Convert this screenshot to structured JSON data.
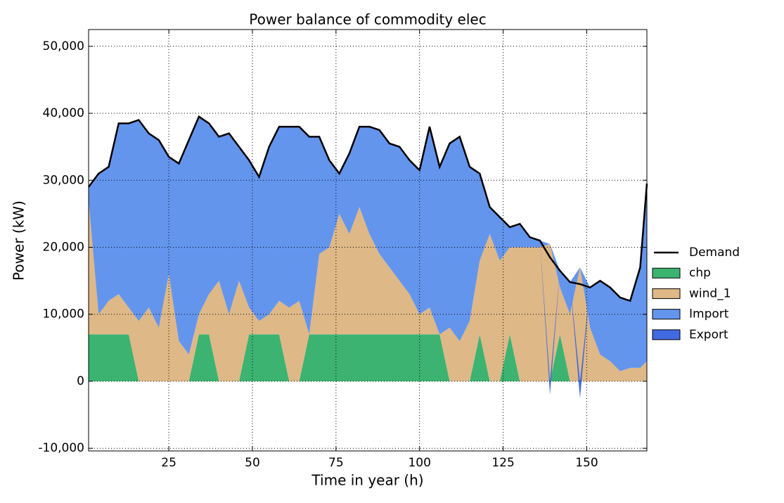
{
  "chart_data": {
    "type": "area",
    "title": "Power balance of commodity elec",
    "x_label": "Time in year (h)",
    "y_label": "Power (kW)",
    "x": [
      1,
      4,
      7,
      10,
      13,
      16,
      19,
      22,
      25,
      28,
      31,
      34,
      37,
      40,
      43,
      46,
      49,
      52,
      55,
      58,
      61,
      64,
      67,
      70,
      73,
      76,
      79,
      82,
      85,
      88,
      91,
      94,
      97,
      100,
      103,
      106,
      109,
      112,
      115,
      118,
      121,
      124,
      127,
      130,
      133,
      136,
      139,
      142,
      145,
      148,
      151,
      154,
      157,
      160,
      163,
      166,
      168
    ],
    "series": [
      {
        "name": "Demand",
        "color": "#000000",
        "type": "line",
        "values": [
          29000,
          31000,
          32000,
          38500,
          38500,
          39000,
          37000,
          36000,
          33500,
          32500,
          36000,
          39500,
          38500,
          36500,
          37000,
          35000,
          33000,
          30500,
          35000,
          38000,
          38000,
          38000,
          36500,
          36500,
          33000,
          31000,
          34000,
          38000,
          38000,
          37500,
          35500,
          35000,
          33000,
          31500,
          38000,
          32000,
          35500,
          36500,
          32000,
          31000,
          26000,
          24500,
          23000,
          23500,
          21500,
          21000,
          18500,
          16500,
          14800,
          14500,
          14000,
          15000,
          14000,
          12500,
          12000,
          17000,
          29500
        ]
      },
      {
        "name": "chp",
        "color": "#3cb371",
        "type": "area",
        "values": [
          7000,
          7000,
          7000,
          7000,
          7000,
          0,
          0,
          0,
          0,
          0,
          0,
          7000,
          7000,
          0,
          0,
          0,
          7000,
          7000,
          7000,
          7000,
          0,
          0,
          7000,
          7000,
          7000,
          7000,
          7000,
          7000,
          7000,
          7000,
          7000,
          7000,
          7000,
          7000,
          7000,
          7000,
          0,
          0,
          0,
          7000,
          0,
          0,
          7000,
          0,
          0,
          0,
          0,
          7000,
          0,
          0,
          0,
          0,
          0,
          0,
          0,
          0,
          0
        ]
      },
      {
        "name": "wind_1",
        "color": "#deb887",
        "type": "area",
        "values": [
          20000,
          3000,
          5000,
          6000,
          4000,
          9000,
          11000,
          8000,
          16000,
          6000,
          4000,
          3000,
          6000,
          15000,
          10000,
          15000,
          4000,
          2000,
          3000,
          5000,
          11000,
          12000,
          0,
          12000,
          13000,
          18000,
          15000,
          19000,
          15000,
          12000,
          10000,
          8000,
          6000,
          3000,
          4000,
          0,
          8000,
          6000,
          9000,
          11000,
          22000,
          18000,
          13000,
          20000,
          20000,
          20000,
          20500,
          7000,
          10000,
          17000,
          8000,
          4000,
          3000,
          1500,
          2000,
          2000,
          3000
        ]
      },
      {
        "name": "Import",
        "color": "#6495ed",
        "type": "area",
        "values": [
          2000,
          21000,
          20000,
          25500,
          27500,
          30000,
          26000,
          28000,
          17500,
          26500,
          32000,
          29500,
          25500,
          21500,
          27000,
          20000,
          22000,
          21500,
          25000,
          26000,
          27000,
          26000,
          29500,
          17500,
          13000,
          6000,
          12000,
          12000,
          16000,
          18500,
          18500,
          20000,
          20000,
          21500,
          27000,
          25000,
          27500,
          30500,
          23000,
          13000,
          4000,
          6500,
          3000,
          3500,
          1500,
          1000,
          0,
          2500,
          4800,
          0,
          6000,
          11000,
          11000,
          11000,
          10000,
          15000,
          26500
        ]
      },
      {
        "name": "Export",
        "color": "#4169e1",
        "type": "area",
        "values": [
          0,
          0,
          0,
          0,
          0,
          0,
          0,
          0,
          0,
          0,
          0,
          0,
          0,
          0,
          0,
          0,
          0,
          0,
          0,
          0,
          0,
          0,
          0,
          0,
          0,
          0,
          0,
          0,
          0,
          0,
          0,
          0,
          0,
          0,
          0,
          0,
          0,
          0,
          0,
          0,
          0,
          0,
          0,
          0,
          0,
          0,
          -2000,
          0,
          0,
          -2500,
          0,
          0,
          0,
          0,
          0,
          0,
          0
        ]
      }
    ],
    "xlim": [
      1,
      168
    ],
    "xticks": [
      25,
      50,
      75,
      100,
      125,
      150
    ],
    "ylim": [
      -10400,
      52500
    ],
    "yticks": [
      {
        "value": -10000,
        "label": "-10,000"
      },
      0,
      {
        "value": 10000,
        "label": "10,000"
      },
      {
        "value": 20000,
        "label": "20,000"
      },
      {
        "value": 30000,
        "label": "30,000"
      },
      {
        "value": 40000,
        "label": "40,000"
      },
      {
        "value": 50000,
        "label": "50,000"
      }
    ],
    "grid": true,
    "legend": "right"
  }
}
